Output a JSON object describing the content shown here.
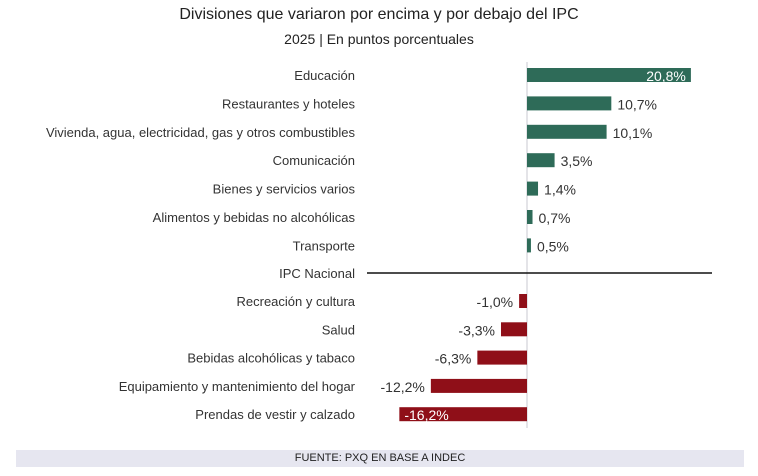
{
  "chart_data": {
    "type": "bar",
    "orientation": "horizontal",
    "title": "Divisiones que variaron por encima y por debajo del IPC",
    "subtitle": "2025 | En puntos porcentuales",
    "categories": [
      "Educación",
      "Restaurantes y hoteles",
      "Vivienda, agua, electricidad, gas y otros combustibles",
      "Comunicación",
      "Bienes y servicios varios",
      "Alimentos y bebidas no alcohólicas",
      "Transporte",
      "Recreación y cultura",
      "Salud",
      "Bebidas alcohólicas y tabaco",
      "Equipamiento y mantenimiento del hogar",
      "Prendas de vestir y calzado"
    ],
    "values": [
      20.8,
      10.7,
      10.1,
      3.5,
      1.4,
      0.7,
      0.5,
      -1.0,
      -3.3,
      -6.3,
      -12.2,
      -16.2
    ],
    "data_labels": [
      "20,8%",
      "10,7%",
      "10,1%",
      "3,5%",
      "1,4%",
      "0,7%",
      "0,5%",
      "-1,0%",
      "-3,3%",
      "-6,3%",
      "-12,2%",
      "-16,2%"
    ],
    "reference_line": {
      "label": "IPC Nacional",
      "after_index": 6
    },
    "colors": {
      "positive": "#2e6b58",
      "negative": "#8f0f18",
      "axis": "#c8c8d0"
    },
    "xlim": [
      -16.2,
      23.5
    ],
    "grid": false,
    "legend": "none"
  },
  "footer": "FUENTE: PXQ EN BASE A INDEC"
}
